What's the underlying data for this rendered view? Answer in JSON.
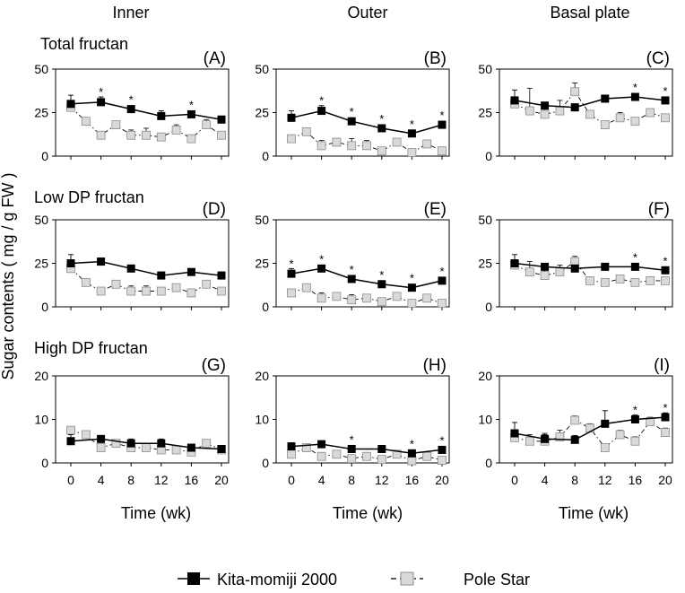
{
  "figure": {
    "column_titles": [
      "Inner",
      "Outer",
      "Basal plate"
    ],
    "row_titles": [
      "Total fructan",
      "Low DP fructan",
      "High DP fructan"
    ],
    "ylabel": "Sugar contents ( mg / g FW )",
    "xlabel": "Time (wk)",
    "legend": {
      "series_1": "Kita-momiji 2000",
      "series_2": "Pole Star"
    },
    "colors": {
      "series_1": "#000000",
      "series_2": "#d9d9d9",
      "axis": "#000000"
    }
  },
  "chart_data": [
    {
      "type": "line",
      "panel": "(A)",
      "row": 0,
      "col": 0,
      "title": "Total fructan",
      "column": "Inner",
      "ylim": [
        0,
        50
      ],
      "yticks": [
        0,
        25,
        50
      ],
      "xticks": [
        0,
        4,
        8,
        12,
        16,
        20
      ],
      "series": [
        {
          "name": "Kita-momiji 2000",
          "x": [
            0,
            4,
            8,
            12,
            16,
            20
          ],
          "values": [
            30,
            31,
            27,
            23,
            24,
            21
          ],
          "errors": [
            5,
            3,
            2,
            3,
            2,
            2
          ],
          "significant": [
            false,
            true,
            true,
            false,
            true,
            false
          ]
        },
        {
          "name": "Pole Star",
          "x": [
            0,
            2,
            4,
            6,
            8,
            10,
            12,
            14,
            16,
            18,
            20
          ],
          "values": [
            28,
            20,
            12,
            18,
            12,
            12,
            11,
            15,
            10,
            18,
            12
          ],
          "errors": [
            3,
            2,
            2,
            1,
            3,
            4,
            2,
            3,
            1,
            3,
            1
          ]
        }
      ]
    },
    {
      "type": "line",
      "panel": "(B)",
      "row": 0,
      "col": 1,
      "title": "",
      "column": "Outer",
      "ylim": [
        0,
        50
      ],
      "yticks": [
        0,
        25,
        50
      ],
      "xticks": [
        0,
        4,
        8,
        12,
        16,
        20
      ],
      "series": [
        {
          "name": "Kita-momiji 2000",
          "x": [
            0,
            4,
            8,
            12,
            16,
            20
          ],
          "values": [
            22,
            26,
            20,
            16,
            13,
            18
          ],
          "errors": [
            4,
            3,
            2,
            2,
            1,
            2
          ],
          "significant": [
            false,
            true,
            true,
            true,
            true,
            true
          ]
        },
        {
          "name": "Pole Star",
          "x": [
            0,
            2,
            4,
            6,
            8,
            10,
            12,
            14,
            16,
            18,
            20
          ],
          "values": [
            10,
            14,
            6,
            8,
            6,
            6,
            3,
            8,
            2,
            7,
            3
          ],
          "errors": [
            1,
            1,
            3,
            1,
            4,
            3,
            1,
            1,
            1,
            1,
            1
          ]
        }
      ]
    },
    {
      "type": "line",
      "panel": "(C)",
      "row": 0,
      "col": 2,
      "title": "",
      "column": "Basal plate",
      "ylim": [
        0,
        50
      ],
      "yticks": [
        0,
        25,
        50
      ],
      "xticks": [
        0,
        4,
        8,
        12,
        16,
        20
      ],
      "series": [
        {
          "name": "Kita-momiji 2000",
          "x": [
            0,
            4,
            8,
            12,
            16,
            20
          ],
          "values": [
            32,
            29,
            28,
            33,
            34,
            32
          ],
          "errors": [
            6,
            2,
            2,
            2,
            1,
            2
          ],
          "significant": [
            false,
            false,
            false,
            false,
            true,
            true
          ]
        },
        {
          "name": "Pole Star",
          "x": [
            0,
            2,
            4,
            6,
            8,
            10,
            12,
            14,
            16,
            18,
            20
          ],
          "values": [
            30,
            26,
            24,
            26,
            37,
            24,
            18,
            22,
            20,
            25,
            22
          ],
          "errors": [
            3,
            13,
            7,
            6,
            5,
            1,
            1,
            3,
            1,
            1,
            1
          ]
        }
      ]
    },
    {
      "type": "line",
      "panel": "(D)",
      "row": 1,
      "col": 0,
      "title": "Low DP fructan",
      "column": "Inner",
      "ylim": [
        0,
        50
      ],
      "yticks": [
        0,
        25,
        50
      ],
      "xticks": [
        0,
        4,
        8,
        12,
        16,
        20
      ],
      "series": [
        {
          "name": "Kita-momiji 2000",
          "x": [
            0,
            4,
            8,
            12,
            16,
            20
          ],
          "values": [
            25,
            26,
            22,
            18,
            20,
            18
          ],
          "errors": [
            5,
            2,
            1,
            2,
            1,
            2
          ],
          "significant": [
            false,
            false,
            false,
            false,
            false,
            false
          ]
        },
        {
          "name": "Pole Star",
          "x": [
            0,
            2,
            4,
            6,
            8,
            10,
            12,
            14,
            16,
            18,
            20
          ],
          "values": [
            22,
            14,
            9,
            13,
            9,
            9,
            9,
            11,
            8,
            13,
            9
          ],
          "errors": [
            3,
            1,
            1,
            1,
            3,
            3,
            1,
            1,
            1,
            1,
            1
          ]
        }
      ]
    },
    {
      "type": "line",
      "panel": "(E)",
      "row": 1,
      "col": 1,
      "title": "",
      "column": "Outer",
      "ylim": [
        0,
        50
      ],
      "yticks": [
        0,
        25,
        50
      ],
      "xticks": [
        0,
        4,
        8,
        12,
        16,
        20
      ],
      "series": [
        {
          "name": "Kita-momiji 2000",
          "x": [
            0,
            4,
            8,
            12,
            16,
            20
          ],
          "values": [
            19,
            22,
            16,
            13,
            11,
            15
          ],
          "errors": [
            3,
            2,
            1,
            2,
            1,
            1
          ],
          "significant": [
            true,
            true,
            true,
            true,
            true,
            true
          ]
        },
        {
          "name": "Pole Star",
          "x": [
            0,
            2,
            4,
            6,
            8,
            10,
            12,
            14,
            16,
            18,
            20
          ],
          "values": [
            8,
            11,
            5,
            6,
            4,
            5,
            3,
            6,
            2,
            5,
            2
          ],
          "errors": [
            1,
            1,
            3,
            1,
            3,
            2,
            1,
            1,
            1,
            1,
            1
          ]
        }
      ]
    },
    {
      "type": "line",
      "panel": "(F)",
      "row": 1,
      "col": 2,
      "title": "",
      "column": "Basal plate",
      "ylim": [
        0,
        50
      ],
      "yticks": [
        0,
        25,
        50
      ],
      "xticks": [
        0,
        4,
        8,
        12,
        16,
        20
      ],
      "series": [
        {
          "name": "Kita-momiji 2000",
          "x": [
            0,
            4,
            8,
            12,
            16,
            20
          ],
          "values": [
            25,
            23,
            22,
            23,
            23,
            21
          ],
          "errors": [
            5,
            1,
            1,
            1,
            1,
            1
          ],
          "significant": [
            false,
            false,
            false,
            false,
            true,
            true
          ]
        },
        {
          "name": "Pole Star",
          "x": [
            0,
            2,
            4,
            6,
            8,
            10,
            12,
            14,
            16,
            18,
            20
          ],
          "values": [
            24,
            20,
            18,
            20,
            26,
            15,
            14,
            16,
            14,
            15,
            15
          ],
          "errors": [
            3,
            6,
            6,
            4,
            3,
            1,
            1,
            1,
            1,
            1,
            1
          ]
        }
      ]
    },
    {
      "type": "line",
      "panel": "(G)",
      "row": 2,
      "col": 0,
      "title": "High DP fructan",
      "column": "Inner",
      "ylim": [
        0,
        20
      ],
      "yticks": [
        0,
        10,
        20
      ],
      "xticks": [
        0,
        4,
        8,
        12,
        16,
        20
      ],
      "series": [
        {
          "name": "Kita-momiji 2000",
          "x": [
            0,
            4,
            8,
            12,
            16,
            20
          ],
          "values": [
            5,
            5.5,
            4.5,
            4.5,
            3.5,
            3.2
          ],
          "errors": [
            1.5,
            0.5,
            1,
            1,
            0.5,
            0.5
          ],
          "significant": [
            false,
            false,
            false,
            false,
            false,
            false
          ]
        },
        {
          "name": "Pole Star",
          "x": [
            0,
            2,
            4,
            6,
            8,
            10,
            12,
            14,
            16,
            18,
            20
          ],
          "values": [
            7.5,
            6.5,
            3.5,
            4.5,
            3.5,
            3.5,
            3,
            3,
            2.5,
            4.5,
            3
          ],
          "errors": [
            0.8,
            0.5,
            0.6,
            0.5,
            0.5,
            0.5,
            0.5,
            0.5,
            0.5,
            0.5,
            0.5
          ]
        }
      ]
    },
    {
      "type": "line",
      "panel": "(H)",
      "row": 2,
      "col": 1,
      "title": "",
      "column": "Outer",
      "ylim": [
        0,
        20
      ],
      "yticks": [
        0,
        10,
        20
      ],
      "xticks": [
        0,
        4,
        8,
        12,
        16,
        20
      ],
      "series": [
        {
          "name": "Kita-momiji 2000",
          "x": [
            0,
            4,
            8,
            12,
            16,
            20
          ],
          "values": [
            3.8,
            4.3,
            3.2,
            3.2,
            2.2,
            3
          ],
          "errors": [
            0.8,
            0.5,
            0.5,
            0.8,
            0.5,
            0.5
          ],
          "significant": [
            false,
            false,
            true,
            false,
            true,
            true
          ]
        },
        {
          "name": "Pole Star",
          "x": [
            0,
            2,
            4,
            6,
            8,
            10,
            12,
            14,
            16,
            18,
            20
          ],
          "values": [
            2,
            3.5,
            1.5,
            2,
            1,
            1.5,
            0.8,
            2,
            0.5,
            1.5,
            0.6
          ],
          "errors": [
            0.5,
            0.5,
            0.8,
            0.3,
            0.5,
            0.5,
            0.3,
            0.3,
            0.3,
            0.3,
            0.3
          ]
        }
      ]
    },
    {
      "type": "line",
      "panel": "(I)",
      "row": 2,
      "col": 2,
      "title": "",
      "column": "Basal plate",
      "ylim": [
        0,
        20
      ],
      "yticks": [
        0,
        10,
        20
      ],
      "xticks": [
        0,
        4,
        8,
        12,
        16,
        20
      ],
      "series": [
        {
          "name": "Kita-momiji 2000",
          "x": [
            0,
            4,
            8,
            12,
            16,
            20
          ],
          "values": [
            6.8,
            5.5,
            5.3,
            9,
            10,
            10.5
          ],
          "errors": [
            2.5,
            1,
            1,
            3,
            1,
            1
          ],
          "significant": [
            false,
            false,
            false,
            false,
            true,
            true
          ]
        },
        {
          "name": "Pole Star",
          "x": [
            0,
            2,
            4,
            6,
            8,
            10,
            12,
            14,
            16,
            18,
            20
          ],
          "values": [
            5.8,
            5,
            5,
            6,
            9.8,
            8,
            3.5,
            6.5,
            5,
            9.5,
            7
          ],
          "errors": [
            0.8,
            1.5,
            1.8,
            1.5,
            1,
            1,
            0.8,
            1,
            1,
            1,
            1
          ]
        }
      ]
    }
  ]
}
